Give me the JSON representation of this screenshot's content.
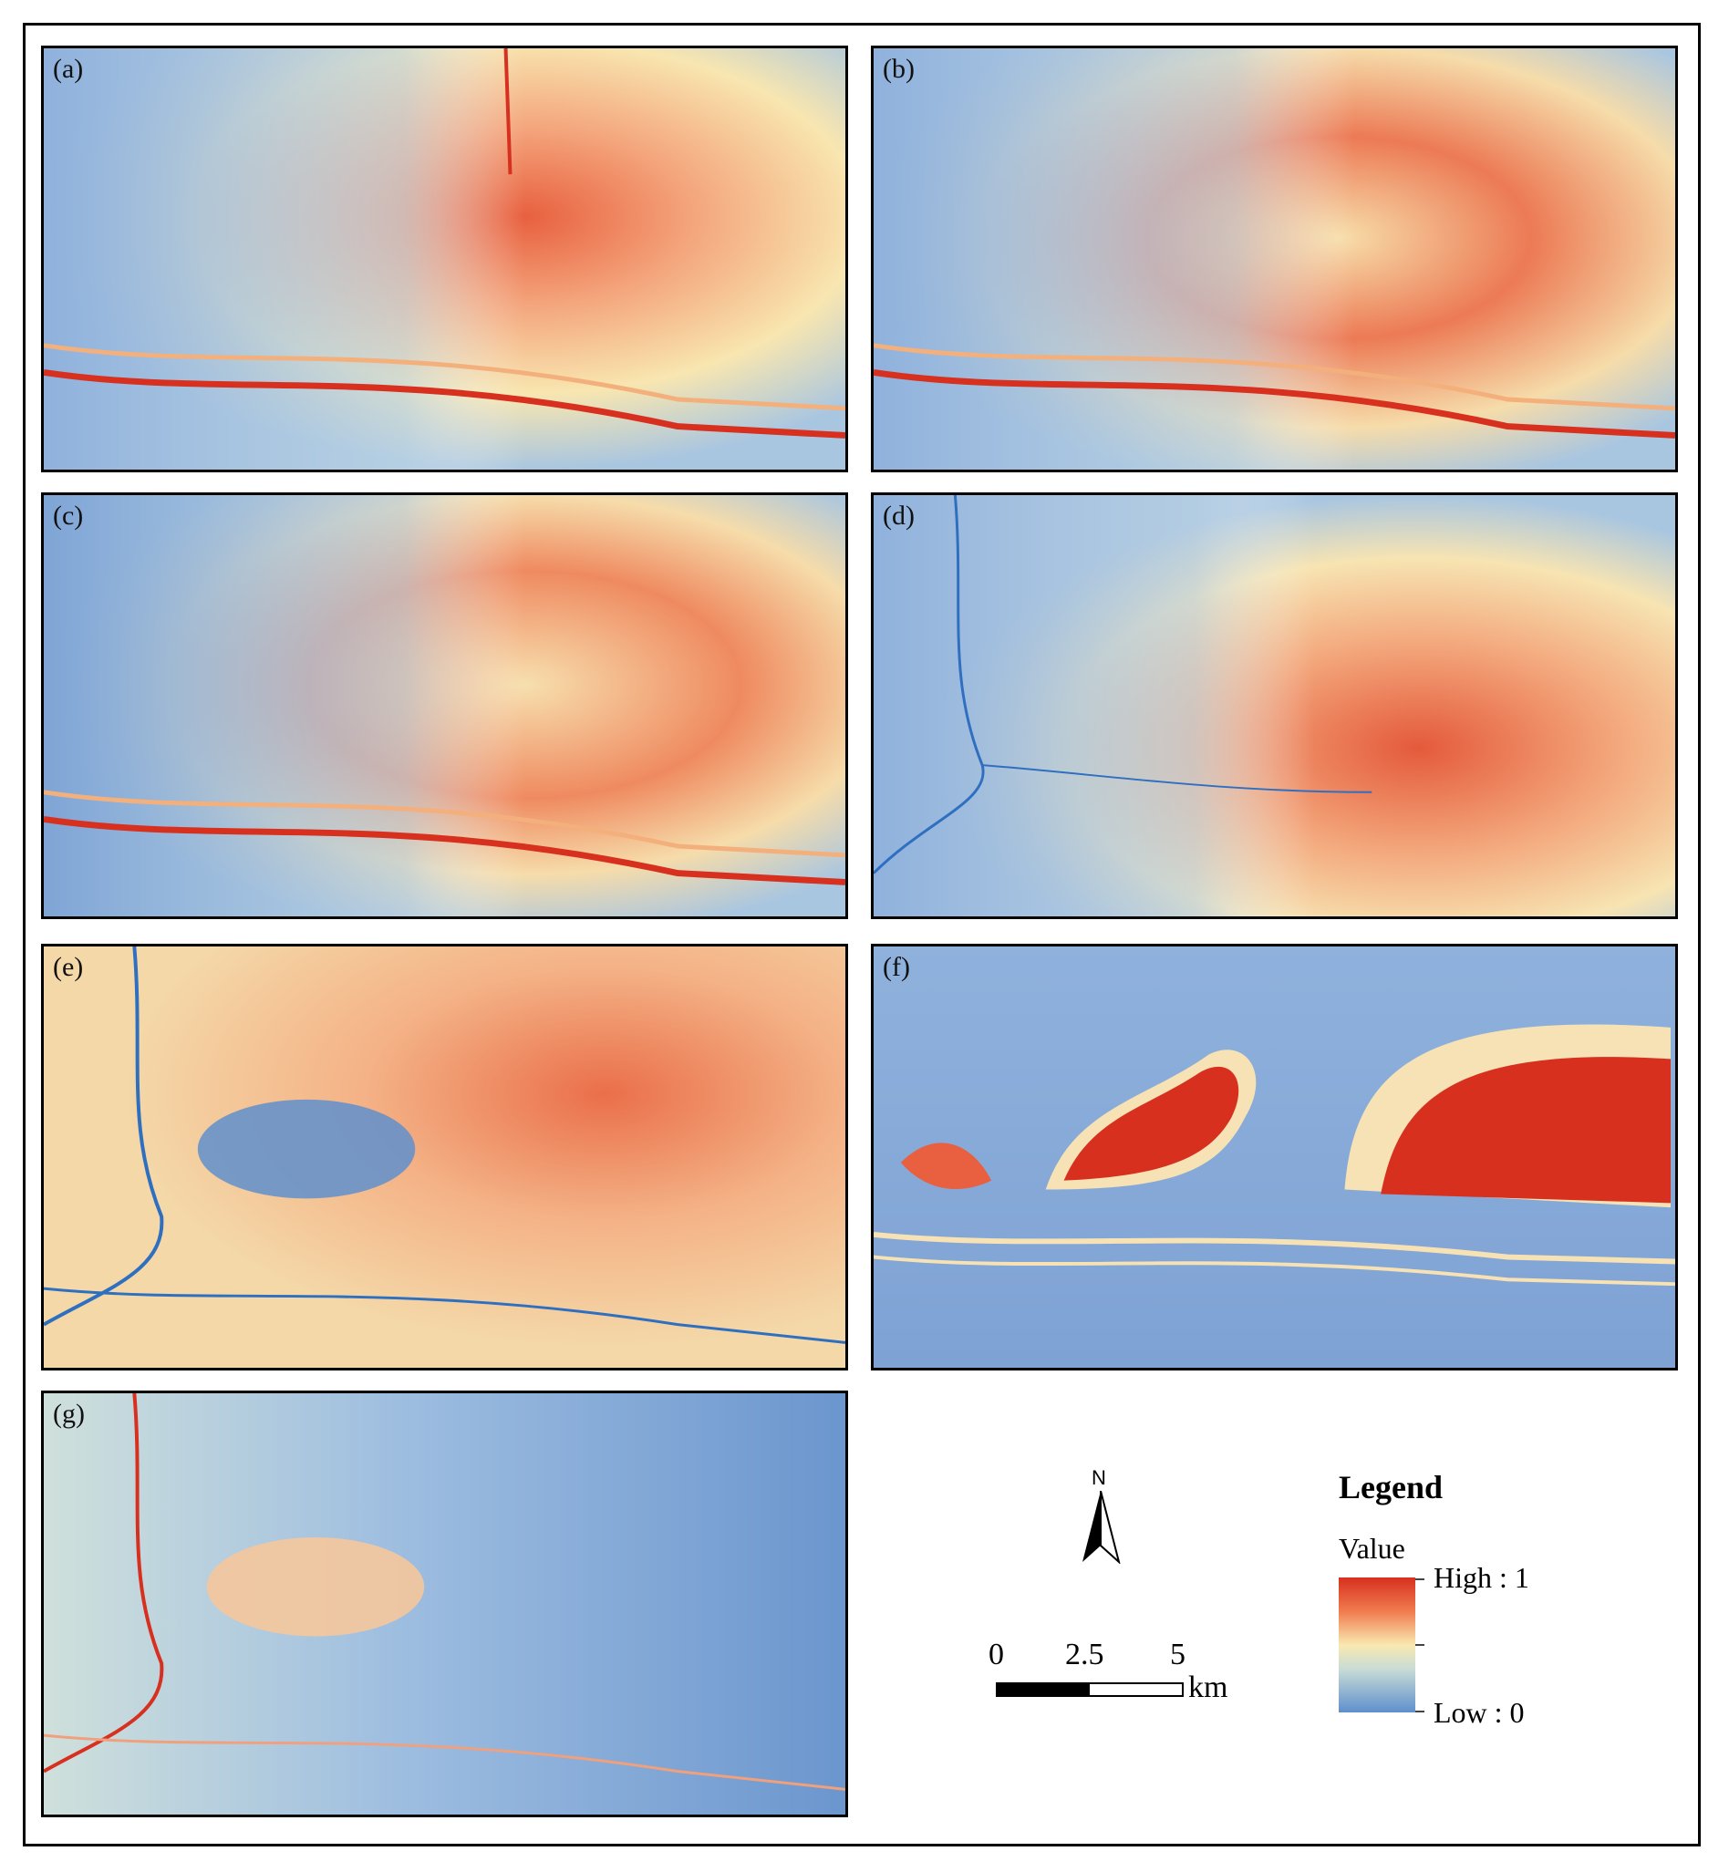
{
  "panels": [
    {
      "label": "(a)",
      "theme": "gradient",
      "hot_center": "north-east"
    },
    {
      "label": "(b)",
      "theme": "gradient",
      "hot_center": "north-east"
    },
    {
      "label": "(c)",
      "theme": "gradient",
      "hot_center": "north-east"
    },
    {
      "label": "(d)",
      "theme": "gradient-river",
      "hot_center": "south-east"
    },
    {
      "label": "(e)",
      "theme": "gradient-river",
      "hot_center": "east"
    },
    {
      "label": "(f)",
      "theme": "elevation",
      "hot_center": "ridges"
    },
    {
      "label": "(g)",
      "theme": "inverse",
      "hot_center": "west"
    }
  ],
  "north_arrow": {
    "letter": "N",
    "icon": "north-arrow-icon"
  },
  "scale_bar": {
    "ticks": [
      "0",
      "2.5",
      "5"
    ],
    "unit": "km"
  },
  "legend": {
    "title": "Legend",
    "subtitle": "Value",
    "high_label": "High : 1",
    "low_label": "Low : 0",
    "colors": {
      "high": "#d7301f",
      "mid": "#f9e9b0",
      "low": "#5f8fcc"
    }
  }
}
